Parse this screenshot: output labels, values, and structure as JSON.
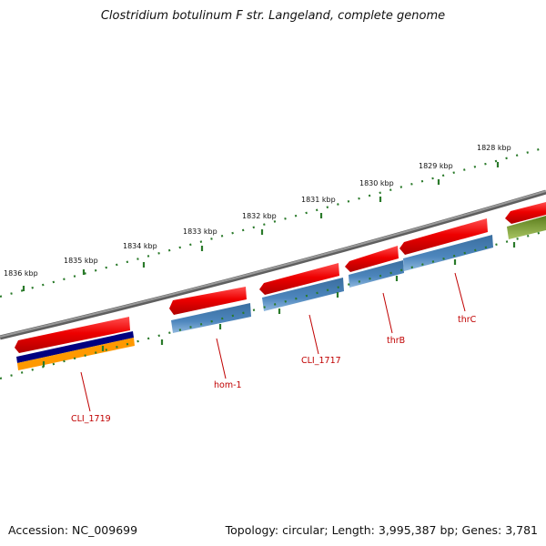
{
  "title": "Clostridium botulinum F str. Langeland, complete genome",
  "accession": "Accession: NC_009699",
  "summary": "Topology: circular; Length: 3,995,387 bp; Genes: 3,781",
  "scale_labels": [
    "1836 kbp",
    "1835 kbp",
    "1834 kbp",
    "1833 kbp",
    "1832 kbp",
    "1831 kbp",
    "1830 kbp",
    "1829 kbp",
    "1828 kbp"
  ],
  "gene_labels": [
    "CLI_1719",
    "hom-1",
    "CLI_1717",
    "thrB",
    "thrC"
  ],
  "colors": {
    "backbone": "#808080",
    "tick": "#2a7a2a",
    "gene": "#e80000",
    "cds_blue": "#4a7fb4",
    "navy": "#000080",
    "orange": "#ff9900",
    "olive": "#6b8e23",
    "label": "#c00000"
  }
}
